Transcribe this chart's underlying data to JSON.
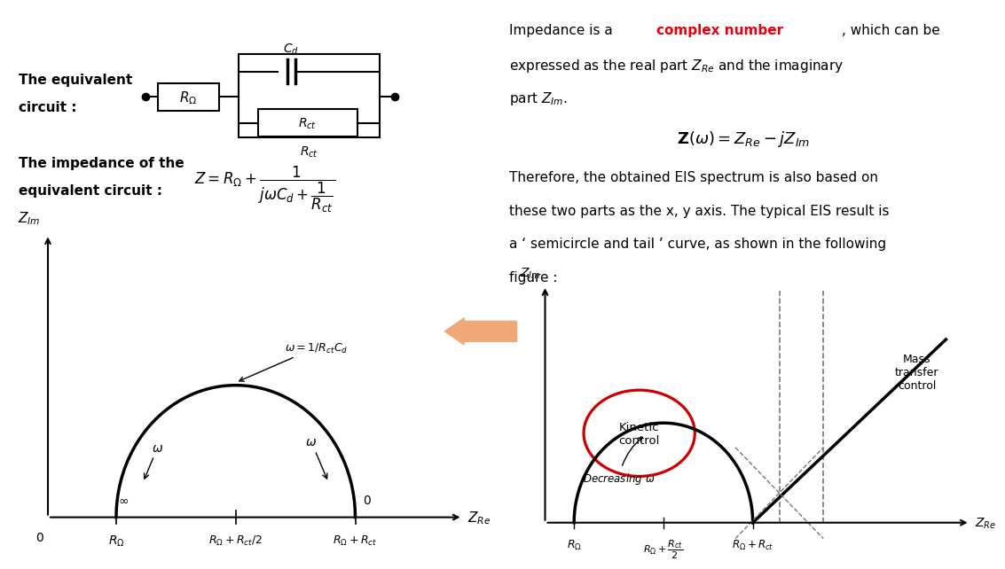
{
  "fig_width": 11.0,
  "fig_height": 6.08,
  "bg_color": "#ffffff",
  "left_panel": {
    "text_equiv_circuit": "The equivalent\ncircuit :",
    "text_impedance": "The impedance of the\nequivalent circuit :",
    "zlm_label": "$Z_{Im}$",
    "zre_label": "$Z_{Re}$",
    "r_omega_label": "$R_{\\Omega}$",
    "r_omega_rct2_label": "$R_{\\Omega}+R_{ct}/2$",
    "r_omega_rct_label": "$R_{\\Omega}+R_{ct}$",
    "omega_annot": "$\\omega$",
    "omega_peak_annot": "$\\omega=1/R_{ct}C_d$",
    "zero_annot": "0",
    "inf_annot": "$\\infty$",
    "formula": "$Z = R_{\\Omega} + \\dfrac{1}{j\\omega C_d + \\dfrac{1}{R_{ct}}}$",
    "circuit_Cd": "$C_d$",
    "circuit_Rct": "$R_{ct}$",
    "circuit_Romega": "$R_{\\Omega}$"
  },
  "right_panel": {
    "zlm_label": "$Z_{Im}$",
    "zre_label": "$Z_{Re}$",
    "r_omega_label": "$R_{\\Omega}$",
    "r_omega_rct2_label": "$R_{\\Omega}+\\dfrac{R_{ct}}{2}$",
    "r_omega_rct_label": "$R_{\\Omega}+R_{ct}$",
    "kinetic_label": "Kinetic\ncontrol",
    "mass_transfer_label": "Mass\ntransfer\ncontrol",
    "decreasing_label": "Decreasing $\\omega$"
  },
  "arrow_color": "#f0a878",
  "circle_color": "#cc0000",
  "curve_color": "#000000",
  "dashed_color": "#777777"
}
